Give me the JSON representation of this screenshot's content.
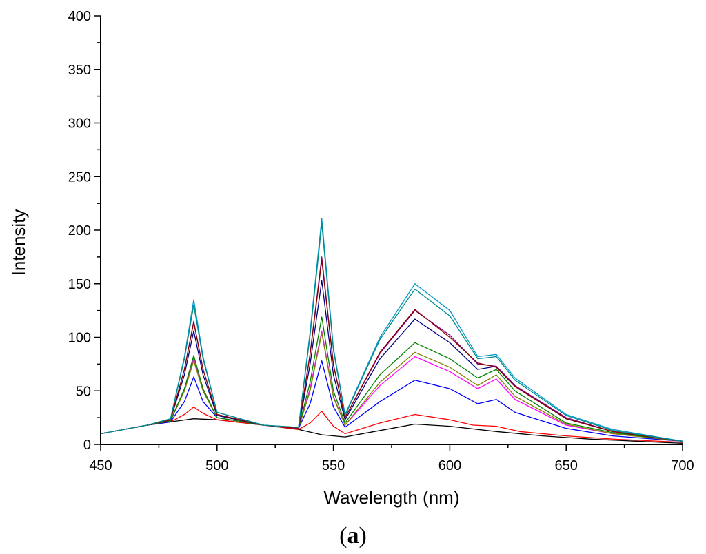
{
  "chart_data": {
    "type": "line",
    "title": "",
    "xlabel": "Wavelength (nm)",
    "ylabel": "Intensity",
    "panel_label": {
      "open": "(",
      "letter": "a",
      "close": ")"
    },
    "xlim": [
      450,
      700
    ],
    "ylim": [
      0,
      400
    ],
    "xticks": [
      450,
      500,
      550,
      600,
      650,
      700
    ],
    "yticks": [
      0,
      50,
      100,
      150,
      200,
      250,
      300,
      350,
      400
    ],
    "x_minor_step": 25,
    "y_minor_step": 25,
    "series": [
      {
        "name": "black",
        "color": "#000000",
        "points": [
          [
            450,
            10
          ],
          [
            470,
            18
          ],
          [
            480,
            21
          ],
          [
            490,
            24
          ],
          [
            500,
            23
          ],
          [
            520,
            18
          ],
          [
            535,
            14
          ],
          [
            545,
            9
          ],
          [
            555,
            7
          ],
          [
            570,
            13
          ],
          [
            585,
            19
          ],
          [
            600,
            17
          ],
          [
            620,
            12
          ],
          [
            640,
            8
          ],
          [
            660,
            5
          ],
          [
            680,
            3
          ],
          [
            700,
            1
          ]
        ]
      },
      {
        "name": "red",
        "color": "#ff0000",
        "points": [
          [
            450,
            10
          ],
          [
            470,
            18
          ],
          [
            480,
            21
          ],
          [
            486,
            28
          ],
          [
            490,
            35
          ],
          [
            494,
            29
          ],
          [
            500,
            23
          ],
          [
            520,
            18
          ],
          [
            535,
            14
          ],
          [
            540,
            20
          ],
          [
            545,
            31
          ],
          [
            550,
            17
          ],
          [
            555,
            10
          ],
          [
            570,
            20
          ],
          [
            585,
            28
          ],
          [
            600,
            23
          ],
          [
            610,
            18
          ],
          [
            620,
            17
          ],
          [
            630,
            12
          ],
          [
            650,
            8
          ],
          [
            670,
            5
          ],
          [
            700,
            2
          ]
        ]
      },
      {
        "name": "blue",
        "color": "#0000ff",
        "points": [
          [
            450,
            10
          ],
          [
            470,
            18
          ],
          [
            480,
            21
          ],
          [
            486,
            40
          ],
          [
            490,
            63
          ],
          [
            494,
            40
          ],
          [
            500,
            25
          ],
          [
            520,
            18
          ],
          [
            535,
            15
          ],
          [
            540,
            38
          ],
          [
            545,
            78
          ],
          [
            550,
            35
          ],
          [
            555,
            16
          ],
          [
            570,
            40
          ],
          [
            585,
            60
          ],
          [
            600,
            52
          ],
          [
            612,
            38
          ],
          [
            620,
            42
          ],
          [
            628,
            30
          ],
          [
            650,
            15
          ],
          [
            670,
            8
          ],
          [
            700,
            3
          ]
        ]
      },
      {
        "name": "magenta",
        "color": "#ff00ff",
        "points": [
          [
            450,
            10
          ],
          [
            470,
            18
          ],
          [
            480,
            22
          ],
          [
            486,
            50
          ],
          [
            490,
            80
          ],
          [
            494,
            50
          ],
          [
            500,
            25
          ],
          [
            520,
            18
          ],
          [
            535,
            15
          ],
          [
            540,
            52
          ],
          [
            545,
            106
          ],
          [
            550,
            45
          ],
          [
            555,
            18
          ],
          [
            570,
            55
          ],
          [
            585,
            82
          ],
          [
            600,
            68
          ],
          [
            612,
            52
          ],
          [
            620,
            61
          ],
          [
            628,
            42
          ],
          [
            650,
            18
          ],
          [
            670,
            10
          ],
          [
            700,
            3
          ]
        ]
      },
      {
        "name": "olive",
        "color": "#808000",
        "points": [
          [
            450,
            10
          ],
          [
            470,
            18
          ],
          [
            480,
            22
          ],
          [
            486,
            50
          ],
          [
            490,
            78
          ],
          [
            494,
            50
          ],
          [
            500,
            25
          ],
          [
            520,
            18
          ],
          [
            535,
            15
          ],
          [
            540,
            50
          ],
          [
            545,
            104
          ],
          [
            550,
            44
          ],
          [
            555,
            18
          ],
          [
            570,
            58
          ],
          [
            585,
            86
          ],
          [
            600,
            72
          ],
          [
            612,
            55
          ],
          [
            620,
            65
          ],
          [
            628,
            45
          ],
          [
            650,
            19
          ],
          [
            670,
            10
          ],
          [
            700,
            3
          ]
        ]
      },
      {
        "name": "green",
        "color": "#008000",
        "points": [
          [
            450,
            10
          ],
          [
            470,
            18
          ],
          [
            480,
            22
          ],
          [
            486,
            52
          ],
          [
            490,
            83
          ],
          [
            494,
            52
          ],
          [
            500,
            25
          ],
          [
            520,
            18
          ],
          [
            535,
            15
          ],
          [
            540,
            58
          ],
          [
            545,
            119
          ],
          [
            550,
            50
          ],
          [
            555,
            20
          ],
          [
            570,
            65
          ],
          [
            585,
            95
          ],
          [
            600,
            80
          ],
          [
            612,
            62
          ],
          [
            620,
            70
          ],
          [
            628,
            50
          ],
          [
            650,
            20
          ],
          [
            670,
            11
          ],
          [
            700,
            3
          ]
        ]
      },
      {
        "name": "dark-blue",
        "color": "#000080",
        "points": [
          [
            450,
            10
          ],
          [
            470,
            18
          ],
          [
            480,
            23
          ],
          [
            486,
            65
          ],
          [
            490,
            106
          ],
          [
            494,
            65
          ],
          [
            500,
            27
          ],
          [
            520,
            18
          ],
          [
            535,
            15
          ],
          [
            540,
            75
          ],
          [
            545,
            153
          ],
          [
            550,
            65
          ],
          [
            555,
            23
          ],
          [
            570,
            80
          ],
          [
            585,
            117
          ],
          [
            600,
            95
          ],
          [
            612,
            70
          ],
          [
            620,
            73
          ],
          [
            628,
            55
          ],
          [
            650,
            24
          ],
          [
            670,
            12
          ],
          [
            700,
            3
          ]
        ]
      },
      {
        "name": "purple",
        "color": "#800080",
        "points": [
          [
            450,
            10
          ],
          [
            470,
            18
          ],
          [
            480,
            23
          ],
          [
            486,
            70
          ],
          [
            490,
            115
          ],
          [
            494,
            70
          ],
          [
            500,
            28
          ],
          [
            520,
            18
          ],
          [
            535,
            15
          ],
          [
            540,
            85
          ],
          [
            545,
            175
          ],
          [
            550,
            75
          ],
          [
            555,
            25
          ],
          [
            570,
            85
          ],
          [
            585,
            125
          ],
          [
            600,
            102
          ],
          [
            612,
            75
          ],
          [
            620,
            73
          ],
          [
            628,
            55
          ],
          [
            650,
            25
          ],
          [
            670,
            12
          ],
          [
            700,
            3
          ]
        ]
      },
      {
        "name": "dark-red",
        "color": "#8b0000",
        "points": [
          [
            450,
            10
          ],
          [
            470,
            18
          ],
          [
            480,
            23
          ],
          [
            486,
            70
          ],
          [
            490,
            114
          ],
          [
            494,
            70
          ],
          [
            500,
            28
          ],
          [
            520,
            18
          ],
          [
            535,
            15
          ],
          [
            540,
            84
          ],
          [
            545,
            172
          ],
          [
            550,
            74
          ],
          [
            555,
            25
          ],
          [
            570,
            86
          ],
          [
            585,
            126
          ],
          [
            600,
            100
          ],
          [
            612,
            76
          ],
          [
            620,
            72
          ],
          [
            628,
            54
          ],
          [
            650,
            24
          ],
          [
            670,
            12
          ],
          [
            700,
            3
          ]
        ]
      },
      {
        "name": "cyan",
        "color": "#0096c8",
        "points": [
          [
            450,
            10
          ],
          [
            470,
            18
          ],
          [
            480,
            24
          ],
          [
            486,
            82
          ],
          [
            490,
            135
          ],
          [
            494,
            82
          ],
          [
            500,
            30
          ],
          [
            520,
            18
          ],
          [
            535,
            16
          ],
          [
            540,
            105
          ],
          [
            545,
            211
          ],
          [
            550,
            90
          ],
          [
            555,
            28
          ],
          [
            570,
            100
          ],
          [
            585,
            150
          ],
          [
            600,
            125
          ],
          [
            612,
            82
          ],
          [
            620,
            84
          ],
          [
            628,
            62
          ],
          [
            650,
            28
          ],
          [
            670,
            14
          ],
          [
            700,
            3
          ]
        ]
      },
      {
        "name": "teal",
        "color": "#008b8b",
        "points": [
          [
            450,
            10
          ],
          [
            470,
            18
          ],
          [
            480,
            24
          ],
          [
            486,
            80
          ],
          [
            490,
            130
          ],
          [
            494,
            80
          ],
          [
            500,
            30
          ],
          [
            520,
            18
          ],
          [
            535,
            16
          ],
          [
            540,
            102
          ],
          [
            545,
            206
          ],
          [
            550,
            88
          ],
          [
            555,
            27
          ],
          [
            570,
            98
          ],
          [
            585,
            145
          ],
          [
            600,
            120
          ],
          [
            612,
            80
          ],
          [
            620,
            82
          ],
          [
            628,
            60
          ],
          [
            650,
            27
          ],
          [
            670,
            13
          ],
          [
            700,
            3
          ]
        ]
      }
    ]
  }
}
